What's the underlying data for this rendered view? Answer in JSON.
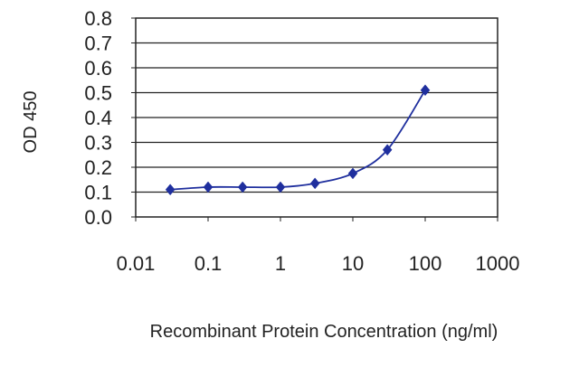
{
  "chart_data": {
    "type": "line",
    "title": "",
    "xlabel": "Recombinant Protein Concentration (ng/ml)",
    "ylabel": "OD 450",
    "xscale": "log",
    "xlim": [
      0.01,
      1000
    ],
    "ylim": [
      0.0,
      0.8
    ],
    "grid": "horizontal",
    "legend": "none",
    "x_ticks": [
      0.01,
      0.1,
      1,
      10,
      100,
      1000
    ],
    "x_tick_labels": [
      "0.01",
      "0.1",
      "1",
      "10",
      "100",
      "1000"
    ],
    "y_ticks": [
      0.0,
      0.1,
      0.2,
      0.3,
      0.4,
      0.5,
      0.6,
      0.7,
      0.8
    ],
    "y_tick_labels": [
      "0.0",
      "0.1",
      "0.2",
      "0.3",
      "0.4",
      "0.5",
      "0.6",
      "0.7",
      "0.8"
    ],
    "series": [
      {
        "x": [
          0.03,
          0.1,
          0.3,
          1,
          3,
          10,
          30,
          100
        ],
        "y": [
          0.11,
          0.12,
          0.12,
          0.12,
          0.135,
          0.175,
          0.27,
          0.51
        ],
        "color": "#1f2f9e",
        "marker": "diamond"
      }
    ]
  }
}
